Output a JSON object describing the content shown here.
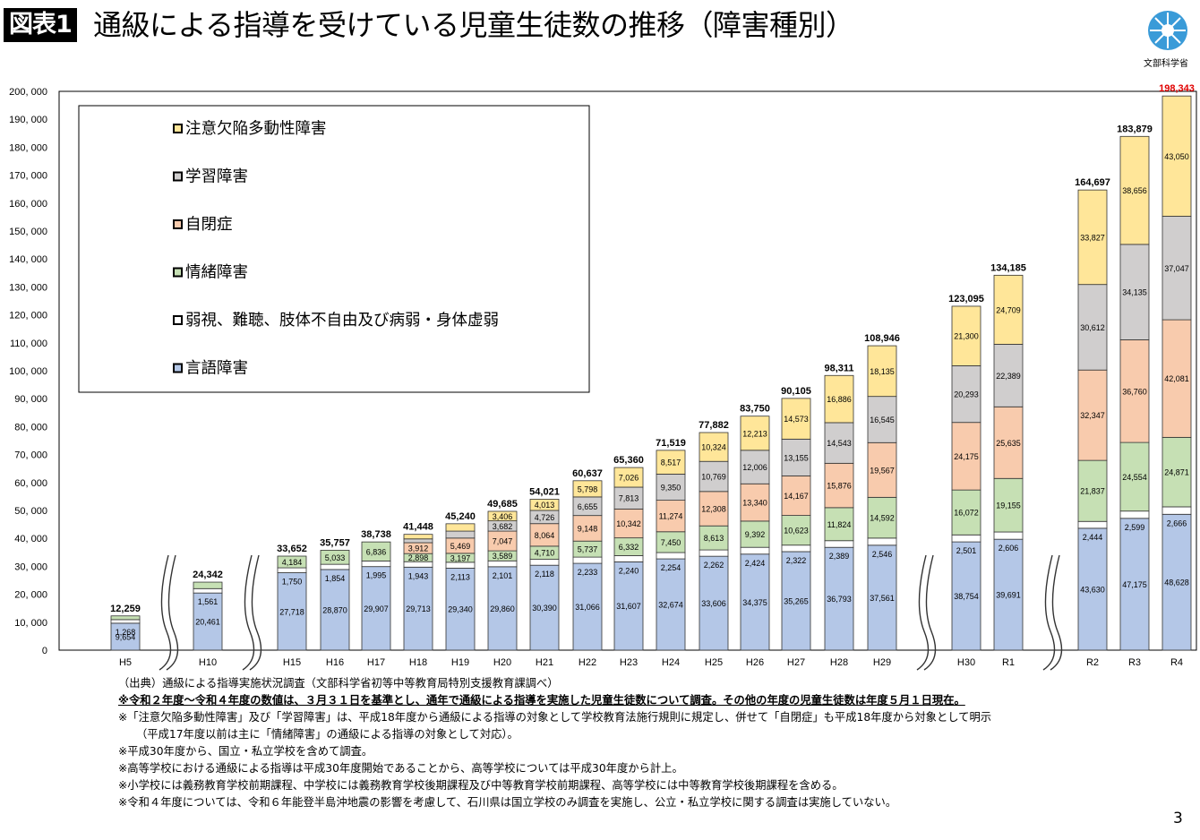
{
  "header": {
    "badge": "図表1",
    "title": "通級による指導を受けている児童生徒数の推移（障害種別）",
    "logo_caption": "文部科学省"
  },
  "colors": {
    "speech": "#b4c7e7",
    "sensory": "#ffffff",
    "emotional": "#c6e0b4",
    "autism": "#f8cbad",
    "ld": "#d0cece",
    "adhd": "#ffe699",
    "highlight": "#e00000"
  },
  "chart_data": {
    "type": "bar",
    "stacked": true,
    "categories": [
      "H5",
      "H10",
      "H15",
      "H16",
      "H17",
      "H18",
      "H19",
      "H20",
      "H21",
      "H22",
      "H23",
      "H24",
      "H25",
      "H26",
      "H27",
      "H28",
      "H29",
      "H30",
      "R1",
      "R2",
      "R3",
      "R4"
    ],
    "series": [
      {
        "name": "言語障害",
        "key": "speech",
        "values": [
          9654,
          20461,
          27718,
          28870,
          29907,
          29713,
          29340,
          29860,
          30390,
          31066,
          31607,
          32674,
          33606,
          34375,
          35265,
          36793,
          37561,
          38754,
          39691,
          43630,
          47175,
          48628
        ]
      },
      {
        "name": "弱視、難聴、肢体不自由及び病弱・身体虚弱",
        "key": "sensory",
        "values": [
          1268,
          1561,
          1750,
          1854,
          1995,
          1943,
          2113,
          2101,
          2118,
          2233,
          2240,
          2254,
          2262,
          2424,
          2322,
          2389,
          2546,
          2501,
          2606,
          2444,
          2599,
          2666
        ]
      },
      {
        "name": "情緒障害",
        "key": "emotional",
        "values": [
          1337,
          2320,
          4184,
          5033,
          6836,
          2898,
          3197,
          3589,
          4710,
          5737,
          6332,
          7450,
          8613,
          9392,
          10623,
          11824,
          14592,
          16072,
          19155,
          21837,
          24554,
          24871
        ]
      },
      {
        "name": "自閉症",
        "key": "autism",
        "values": [
          0,
          0,
          0,
          0,
          0,
          3912,
          5469,
          7047,
          8064,
          9148,
          10342,
          11274,
          12308,
          13340,
          14167,
          15876,
          19567,
          24175,
          25635,
          32347,
          36760,
          42081
        ]
      },
      {
        "name": "学習障害",
        "key": "ld",
        "values": [
          0,
          0,
          0,
          0,
          0,
          1351,
          2485,
          3682,
          4726,
          6655,
          7813,
          9350,
          10769,
          12006,
          13155,
          14543,
          16545,
          20293,
          22389,
          30612,
          34135,
          37047
        ]
      },
      {
        "name": "注意欠陥多動性障害",
        "key": "adhd",
        "values": [
          0,
          0,
          0,
          0,
          0,
          1631,
          2636,
          3406,
          4013,
          5798,
          7026,
          8517,
          10324,
          12213,
          14573,
          16886,
          18135,
          21300,
          24709,
          33827,
          38656,
          43050
        ]
      }
    ],
    "totals": [
      "12,259",
      "24,342",
      "33,652",
      "35,757",
      "38,738",
      "41,448",
      "45,240",
      "49,685",
      "54,021",
      "60,637",
      "65,360",
      "71,519",
      "77,882",
      "83,750",
      "90,105",
      "98,311",
      "108,946",
      "123,095",
      "134,185",
      "164,697",
      "183,879",
      "198,343"
    ],
    "segment_labels": [
      [
        "9,654",
        "1,268",
        "1,337",
        "",
        "",
        ""
      ],
      [
        "20,461",
        "1,561",
        "2,320",
        "",
        "",
        ""
      ],
      [
        "27,718",
        "1,750",
        "4,184",
        "",
        "",
        ""
      ],
      [
        "28,870",
        "1,854",
        "5,033",
        "",
        "",
        ""
      ],
      [
        "29,907",
        "1,995",
        "6,836",
        "",
        "",
        ""
      ],
      [
        "29,713",
        "1,943",
        "2,898",
        "3,912",
        "1,351",
        "1,631"
      ],
      [
        "29,340",
        "2,113",
        "3,197",
        "5,469",
        "2,485",
        "2,636"
      ],
      [
        "29,860",
        "2,101",
        "3,589",
        "7,047",
        "3,682",
        "3,406"
      ],
      [
        "30,390",
        "2,118",
        "4,710",
        "8,064",
        "4,726",
        "4,013"
      ],
      [
        "31,066",
        "2,233",
        "5,737",
        "9,148",
        "6,655",
        "5,798"
      ],
      [
        "31,607",
        "2,240",
        "6,332",
        "10,342",
        "7,813",
        "7,026"
      ],
      [
        "32,674",
        "2,254",
        "7,450",
        "11,274",
        "9,350",
        "8,517"
      ],
      [
        "33,606",
        "2,262",
        "8,613",
        "12,308",
        "10,769",
        "10,324"
      ],
      [
        "34,375",
        "2,424",
        "9,392",
        "13,340",
        "12,006",
        "12,213"
      ],
      [
        "35,265",
        "2,322",
        "10,623",
        "14,167",
        "13,155",
        "14,573"
      ],
      [
        "36,793",
        "2,389",
        "11,824",
        "15,876",
        "14,543",
        "16,886"
      ],
      [
        "37,561",
        "2,546",
        "14,592",
        "19,567",
        "16,545",
        "18,135"
      ],
      [
        "38,754",
        "2,501",
        "16,072",
        "24,175",
        "20,293",
        "21,300"
      ],
      [
        "39,691",
        "2,606",
        "19,155",
        "25,635",
        "22,389",
        "24,709"
      ],
      [
        "43,630",
        "2,444",
        "21,837",
        "32,347",
        "30,612",
        "33,827"
      ],
      [
        "47,175",
        "2,599",
        "24,554",
        "36,760",
        "34,135",
        "38,656"
      ],
      [
        "48,628",
        "2,666",
        "24,871",
        "42,081",
        "37,047",
        "43,050"
      ]
    ],
    "y_ticks": [
      "0",
      "10, 000",
      "20, 000",
      "30, 000",
      "40, 000",
      "50, 000",
      "60, 000",
      "70, 000",
      "80, 000",
      "90, 000",
      "100, 000",
      "110, 000",
      "120, 000",
      "130, 000",
      "140, 000",
      "150, 000",
      "160, 000",
      "170, 000",
      "180, 000",
      "190, 000",
      "200, 000"
    ],
    "ylim": [
      0,
      200000
    ],
    "legend_order": [
      "adhd",
      "ld",
      "autism",
      "emotional",
      "sensory",
      "speech"
    ],
    "legend_position": "top-left",
    "axis_breaks_after": [
      "H5",
      "H10",
      "H29",
      "R1"
    ],
    "highlighted_total": "198,343"
  },
  "notes": {
    "source": "（出典）通級による指導実施状況調査（文部科学省初等中等教育局特別支援教育課調べ）",
    "bold_note": "※令和２年度～令和４年度の数値は、３月３１日を基準とし、通年で通級による指導を実施した児童生徒数について調査。その他の年度の児童生徒数は年度５月１日現在。",
    "note1": "※「注意欠陥多動性障害」及び「学習障害」は、平成18年度から通級による指導の対象として学校教育法施行規則に規定し、併せて「自閉症」も平成18年度から対象として明示",
    "note1b": "（平成17年度以前は主に「情緒障害」の通級による指導の対象として対応）。",
    "note2": "※平成30年度から、国立・私立学校を含めて調査。",
    "note3": "※高等学校における通級による指導は平成30年度開始であることから、高等学校については平成30年度から計上。",
    "note4": "※小学校には義務教育学校前期課程、中学校には義務教育学校後期課程及び中等教育学校前期課程、高等学校には中等教育学校後期課程を含める。",
    "note5": "※令和４年度については、令和６年能登半島沖地震の影響を考慮して、石川県は国立学校のみ調査を実施し、公立・私立学校に関する調査は実施していない。"
  },
  "page_number": "3"
}
